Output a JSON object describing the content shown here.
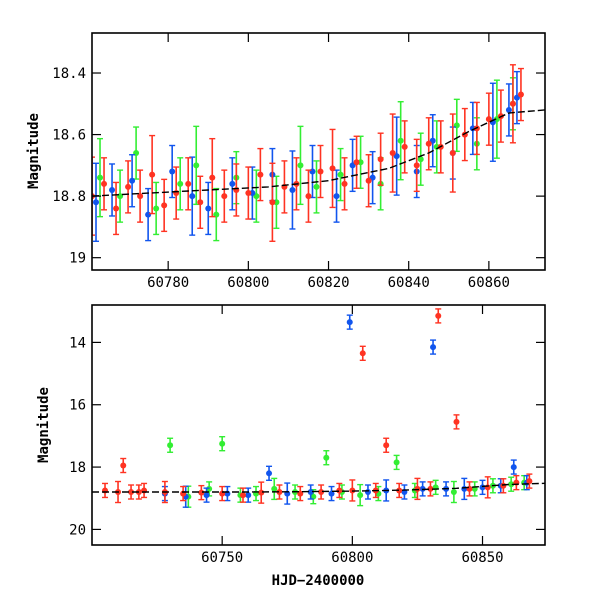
{
  "chart_data": [
    {
      "type": "scatter",
      "panel": "top",
      "title": "",
      "xlabel": "",
      "ylabel": "Magnitude",
      "xlim": [
        60761,
        60874
      ],
      "ylim": [
        19.04,
        18.27
      ],
      "y_inverted": true,
      "xticks": [
        60780,
        60800,
        60820,
        60840,
        60860
      ],
      "yticks": [
        18.4,
        18.6,
        18.8,
        19
      ],
      "ytick_labels": [
        "18.4",
        "18.6",
        "18.8",
        "19"
      ],
      "grid": false,
      "colors": {
        "green": "#33ee33",
        "blue": "#1155ee",
        "red": "#ff3322",
        "model": "#000000"
      },
      "series": [
        {
          "color": "red",
          "x": [
            60761,
            60764,
            60767,
            60770,
            60773,
            60776,
            60779,
            60782,
            60785,
            60788,
            60791,
            60794,
            60797,
            60800,
            60803,
            60806,
            60809,
            60812,
            60815,
            60818,
            60821,
            60824,
            60827,
            60830,
            60833,
            60836,
            60839,
            60842,
            60845,
            60848,
            60851,
            60854,
            60857,
            60860,
            60863,
            60866,
            60868
          ],
          "y": [
            18.8,
            18.76,
            18.84,
            18.77,
            18.8,
            18.73,
            18.83,
            18.79,
            18.76,
            18.82,
            18.74,
            18.8,
            18.78,
            18.79,
            18.73,
            18.82,
            18.77,
            18.76,
            18.8,
            18.72,
            18.71,
            18.76,
            18.69,
            18.75,
            18.68,
            18.66,
            18.64,
            18.7,
            18.63,
            18.64,
            18.66,
            18.6,
            18.58,
            18.55,
            18.54,
            18.5,
            18.47
          ]
        },
        {
          "color": "blue",
          "x": [
            60762,
            60766,
            60771,
            60775,
            60781,
            60786,
            60790,
            60796,
            60801,
            60806,
            60811,
            60816,
            60822,
            60826,
            60831,
            60837,
            60842,
            60846,
            60851,
            60856,
            60861,
            60865,
            60867
          ],
          "y": [
            18.82,
            18.78,
            18.75,
            18.86,
            18.72,
            18.8,
            18.84,
            18.76,
            18.79,
            18.73,
            18.78,
            18.72,
            18.8,
            18.7,
            18.74,
            18.67,
            18.72,
            18.62,
            18.66,
            18.58,
            18.56,
            18.52,
            18.48
          ]
        },
        {
          "color": "green",
          "x": [
            60763,
            60768,
            60772,
            60777,
            60783,
            60787,
            60792,
            60797,
            60802,
            60807,
            60813,
            60817,
            60823,
            60828,
            60833,
            60838,
            60843,
            60847,
            60852,
            60857,
            60862,
            60866
          ],
          "y": [
            18.74,
            18.8,
            18.66,
            18.84,
            18.76,
            18.7,
            18.86,
            18.74,
            18.8,
            18.82,
            18.7,
            18.77,
            18.73,
            18.69,
            18.76,
            18.62,
            18.68,
            18.64,
            18.57,
            18.63,
            18.55,
            18.5
          ]
        }
      ],
      "model": {
        "x": [
          60761,
          60775,
          60790,
          60805,
          60820,
          60835,
          60845,
          60855,
          60865,
          60874
        ],
        "y": [
          18.8,
          18.79,
          18.78,
          18.77,
          18.75,
          18.71,
          18.66,
          18.59,
          18.53,
          18.52
        ]
      }
    },
    {
      "type": "scatter",
      "panel": "bottom",
      "title": "",
      "xlabel": "HJD−2400000",
      "ylabel": "Magnitude",
      "xlim": [
        60700,
        60874
      ],
      "ylim": [
        20.5,
        12.8
      ],
      "y_inverted": true,
      "xticks": [
        60750,
        60800,
        60850
      ],
      "yticks": [
        14,
        16,
        18,
        20
      ],
      "grid": false,
      "series": [
        {
          "color": "red",
          "x": [
            60705,
            60710,
            60712,
            60715,
            60718,
            60720,
            60728,
            60735,
            60742,
            60750,
            60758,
            60765,
            60772,
            60780,
            60788,
            60795,
            60800,
            60804,
            60809,
            60813,
            60818,
            60825,
            60830,
            60833,
            60840,
            60845,
            60852,
            60858,
            60863,
            60868
          ],
          "y": [
            18.75,
            18.8,
            17.95,
            18.8,
            18.8,
            18.75,
            18.8,
            18.85,
            18.82,
            18.85,
            18.9,
            18.82,
            18.8,
            18.85,
            18.8,
            18.75,
            18.75,
            14.35,
            18.75,
            17.3,
            18.75,
            18.7,
            18.7,
            13.15,
            16.55,
            18.7,
            18.65,
            18.6,
            18.5,
            18.45
          ]
        },
        {
          "color": "blue",
          "x": [
            60728,
            60736,
            60744,
            60752,
            60760,
            60768,
            60775,
            60784,
            60792,
            60799,
            60806,
            60813,
            60820,
            60827,
            60831,
            60836,
            60843,
            60850,
            60857,
            60862,
            60867
          ],
          "y": [
            18.85,
            18.95,
            18.9,
            18.85,
            18.9,
            18.2,
            18.85,
            18.8,
            18.85,
            13.35,
            18.8,
            18.75,
            18.8,
            18.7,
            14.15,
            18.7,
            18.7,
            18.65,
            18.6,
            18.0,
            18.5
          ]
        },
        {
          "color": "green",
          "x": [
            60730,
            60737,
            60745,
            60750,
            60757,
            60763,
            60770,
            60778,
            60785,
            60790,
            60796,
            60803,
            60810,
            60817,
            60824,
            60832,
            60839,
            60847,
            60854,
            60861,
            60866
          ],
          "y": [
            17.3,
            18.95,
            18.7,
            17.25,
            18.9,
            18.85,
            18.7,
            18.8,
            18.95,
            17.7,
            18.8,
            18.9,
            18.85,
            17.85,
            18.75,
            18.65,
            18.8,
            18.7,
            18.6,
            18.55,
            18.5
          ]
        }
      ],
      "model": {
        "x": [
          60700,
          60720,
          60740,
          60760,
          60780,
          60800,
          60820,
          60840,
          60860,
          60874
        ],
        "y": [
          18.8,
          18.8,
          18.8,
          18.8,
          18.79,
          18.77,
          18.74,
          18.68,
          18.56,
          18.52
        ]
      }
    }
  ]
}
